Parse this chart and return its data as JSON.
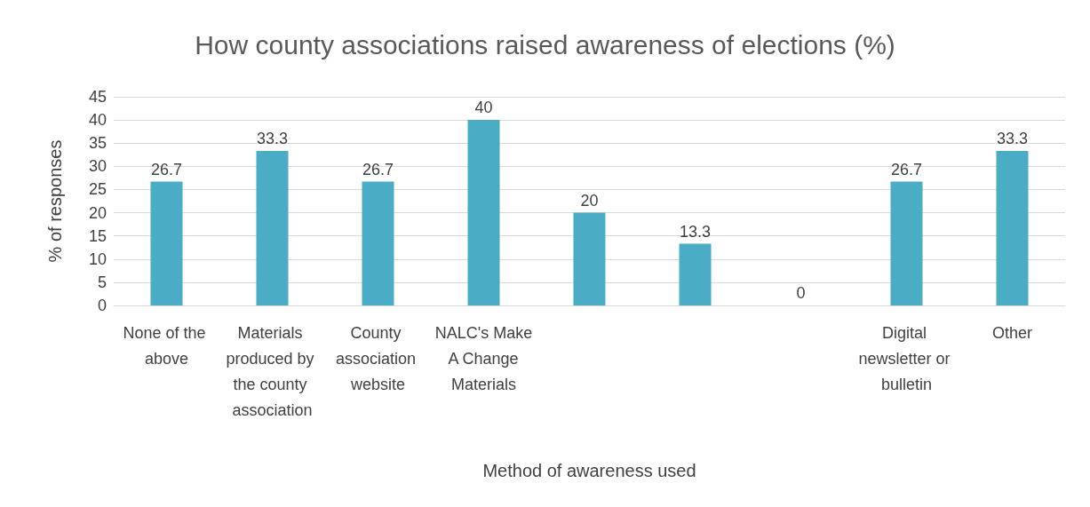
{
  "chart_data": {
    "type": "bar",
    "title": "How county associations raised awareness of elections (%)",
    "xlabel": "Method of awareness used",
    "ylabel": "% of responses",
    "categories": [
      "None of the above",
      "Materials produced by the county association",
      "County association website",
      "NALC's Make A Change Materials",
      null,
      null,
      null,
      "Digital newsletter or bulletin",
      "Other"
    ],
    "values": [
      26.7,
      33.3,
      26.7,
      40,
      20,
      13.3,
      0,
      26.7,
      33.3
    ],
    "color": "#4bacc6",
    "ylim": [
      0,
      45
    ],
    "yticks": [
      0,
      5,
      10,
      15,
      20,
      25,
      30,
      35,
      40,
      45
    ],
    "grid": "y",
    "data_labels": true
  }
}
